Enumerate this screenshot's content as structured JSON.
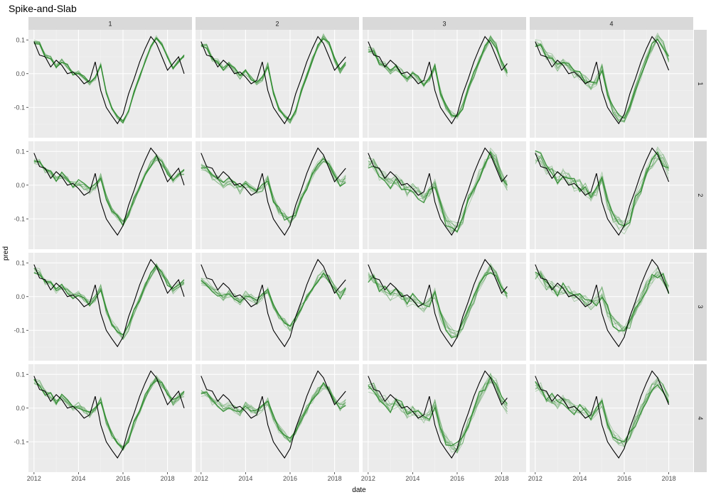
{
  "chart_data": {
    "type": "line",
    "title": "Spike-and-Slab",
    "xlabel": "date",
    "ylabel": "pred",
    "facet_cols": [
      "1",
      "2",
      "3",
      "4"
    ],
    "facet_rows": [
      "1",
      "2",
      "3",
      "4"
    ],
    "x_ticks": [
      "2012",
      "2014",
      "2016",
      "2018"
    ],
    "y_ticks": [
      "0.1",
      "0.0",
      "-0.1"
    ],
    "xlim": [
      2011.75,
      2019.1
    ],
    "ylim": [
      -0.19,
      0.13
    ],
    "actual_series_color": "#000000",
    "prediction_color": "#2e8b2e",
    "actual": {
      "dates": [
        2012.0,
        2012.25,
        2012.5,
        2012.75,
        2013.0,
        2013.25,
        2013.5,
        2013.75,
        2014.0,
        2014.25,
        2014.5,
        2014.75,
        2015.0,
        2015.25,
        2015.5,
        2015.75,
        2016.0,
        2016.25,
        2016.5,
        2016.75,
        2017.0,
        2017.25,
        2017.5,
        2017.75,
        2018.0,
        2018.25,
        2018.5,
        2018.75
      ],
      "values": [
        0.095,
        0.055,
        0.05,
        0.02,
        0.04,
        0.025,
        0.0,
        0.005,
        -0.01,
        -0.03,
        -0.02,
        0.035,
        -0.05,
        -0.1,
        -0.125,
        -0.148,
        -0.12,
        -0.06,
        -0.015,
        0.035,
        0.075,
        0.11,
        0.09,
        0.05,
        0.01,
        0.03,
        0.05,
        0.0
      ]
    },
    "panels": [
      {
        "row": "1",
        "col": "1",
        "end": 2018.9,
        "spread": 0.006,
        "scale": 1.0,
        "bias": [
          0.0,
          0.0,
          0.0,
          0.01
        ]
      },
      {
        "row": "1",
        "col": "2",
        "end": 2018.5,
        "spread": 0.008,
        "scale": 1.0,
        "bias": [
          -0.02,
          0.0,
          0.005,
          -0.01
        ]
      },
      {
        "row": "1",
        "col": "3",
        "end": 2018.25,
        "spread": 0.01,
        "scale": 0.9,
        "bias": [
          -0.03,
          -0.01,
          0.01,
          -0.02
        ]
      },
      {
        "row": "1",
        "col": "4",
        "end": 2018.0,
        "spread": 0.014,
        "scale": 0.95,
        "bias": [
          0.0,
          -0.015,
          0.01,
          0.0
        ]
      },
      {
        "row": "2",
        "col": "1",
        "end": 2018.9,
        "spread": 0.01,
        "scale": 0.75,
        "bias": [
          0.0,
          0.01,
          0.0,
          0.01
        ]
      },
      {
        "row": "2",
        "col": "2",
        "end": 2018.5,
        "spread": 0.012,
        "scale": 0.7,
        "bias": [
          -0.03,
          0.0,
          0.0,
          -0.01
        ]
      },
      {
        "row": "2",
        "col": "3",
        "end": 2018.25,
        "spread": 0.018,
        "scale": 0.85,
        "bias": [
          -0.03,
          -0.025,
          0.0,
          -0.02
        ]
      },
      {
        "row": "2",
        "col": "4",
        "end": 2018.0,
        "spread": 0.02,
        "scale": 0.85,
        "bias": [
          0.0,
          -0.005,
          0.0,
          -0.005
        ]
      },
      {
        "row": "3",
        "col": "1",
        "end": 2018.9,
        "spread": 0.01,
        "scale": 0.8,
        "bias": [
          0.0,
          0.01,
          0.0,
          0.01
        ]
      },
      {
        "row": "3",
        "col": "2",
        "end": 2018.5,
        "spread": 0.012,
        "scale": 0.6,
        "bias": [
          -0.03,
          0.01,
          0.0,
          -0.01
        ]
      },
      {
        "row": "3",
        "col": "3",
        "end": 2018.25,
        "spread": 0.016,
        "scale": 0.75,
        "bias": [
          -0.03,
          -0.015,
          0.0,
          -0.02
        ]
      },
      {
        "row": "3",
        "col": "4",
        "end": 2018.0,
        "spread": 0.018,
        "scale": 0.65,
        "bias": [
          0.0,
          -0.005,
          0.0,
          -0.01
        ]
      },
      {
        "row": "4",
        "col": "1",
        "end": 2018.9,
        "spread": 0.01,
        "scale": 0.8,
        "bias": [
          0.0,
          0.01,
          0.0,
          0.01
        ]
      },
      {
        "row": "4",
        "col": "2",
        "end": 2018.5,
        "spread": 0.012,
        "scale": 0.6,
        "bias": [
          -0.03,
          0.01,
          0.0,
          -0.01
        ]
      },
      {
        "row": "4",
        "col": "3",
        "end": 2018.25,
        "spread": 0.018,
        "scale": 0.8,
        "bias": [
          -0.03,
          -0.02,
          0.0,
          -0.02
        ]
      },
      {
        "row": "4",
        "col": "4",
        "end": 2018.0,
        "spread": 0.016,
        "scale": 0.7,
        "bias": [
          -0.01,
          -0.005,
          0.0,
          -0.01
        ]
      }
    ]
  }
}
